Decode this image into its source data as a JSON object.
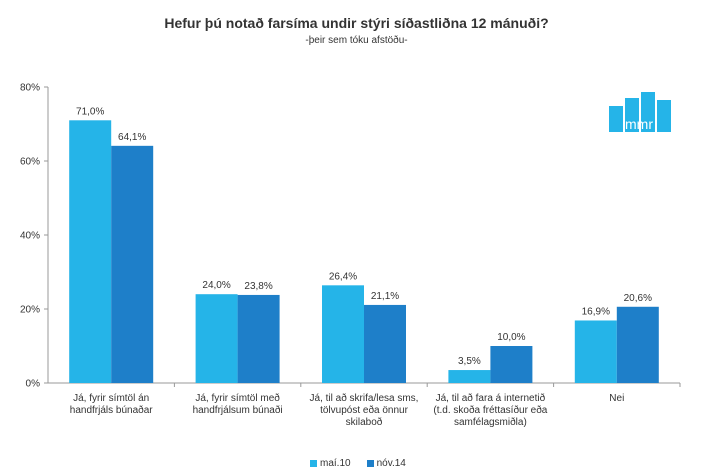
{
  "chart_data": {
    "type": "bar",
    "title": "Hefur þú notað farsíma undir stýri síðastliðna 12 mánuði?",
    "subtitle": "-þeir sem tóku afstöðu-",
    "categories": [
      [
        "Já, fyrir símtöl án",
        "handfrjáls búnaðar"
      ],
      [
        "Já, fyrir símtöl með",
        "handfrjálsum búnaði"
      ],
      [
        "Já, til að skrifa/lesa sms,",
        "tölvupóst eða önnur",
        "skilaboð"
      ],
      [
        "Já, til að fara á internetið",
        "(t.d. skoða fréttasíður eða",
        "samfélagsmiðla)"
      ],
      [
        "Nei"
      ]
    ],
    "series": [
      {
        "name": "maí.10",
        "values": [
          71.0,
          24.0,
          26.4,
          3.5,
          16.9
        ],
        "labels": [
          "71,0%",
          "24,0%",
          "26,4%",
          "3,5%",
          "16,9%"
        ],
        "color": "#25B4E8"
      },
      {
        "name": "nóv.14",
        "values": [
          64.1,
          23.8,
          21.1,
          10.0,
          20.6
        ],
        "labels": [
          "64,1%",
          "23,8%",
          "21,1%",
          "10,0%",
          "20,6%"
        ],
        "color": "#1E7FC9"
      }
    ],
    "ylim": [
      0,
      80
    ],
    "yticks": [
      "0%",
      "20%",
      "40%",
      "60%",
      "80%"
    ],
    "legend_position": "bottom",
    "grid": false
  },
  "logo": {
    "text": "mmr",
    "color": "#25B4E8"
  }
}
